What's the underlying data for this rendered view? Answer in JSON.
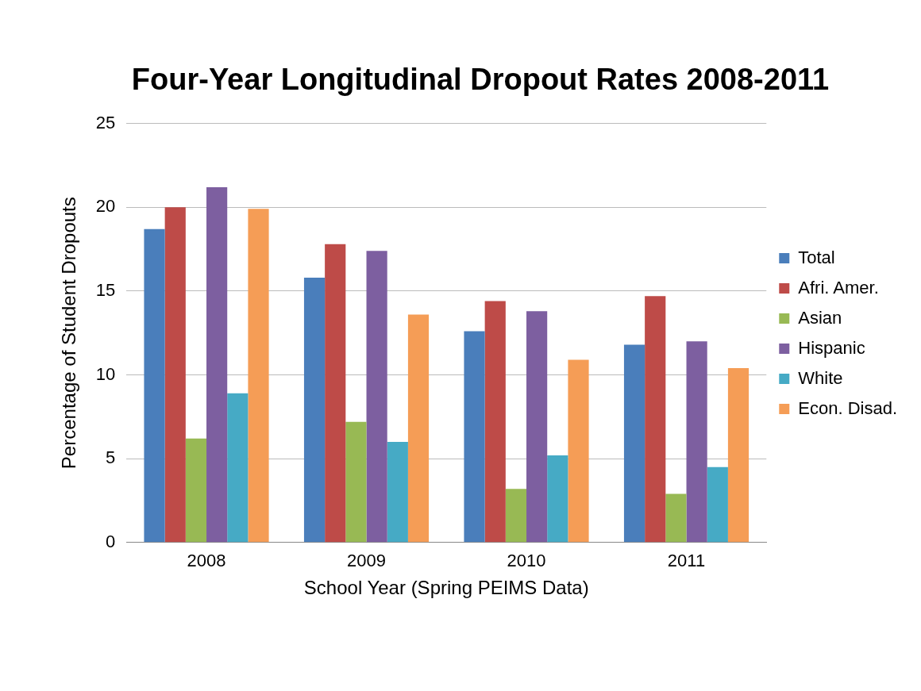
{
  "chart_data": {
    "type": "bar",
    "title": "Four-Year Longitudinal Dropout Rates 2008-2011",
    "xlabel": "School Year (Spring PEIMS Data)",
    "ylabel": "Percentage of Student Dropouts",
    "categories": [
      "2008",
      "2009",
      "2010",
      "2011"
    ],
    "series": [
      {
        "name": "Total",
        "color": "#4a7ebb",
        "values": [
          18.7,
          15.8,
          12.6,
          11.8
        ]
      },
      {
        "name": "Afri. Amer.",
        "color": "#be4b48",
        "values": [
          20.0,
          17.8,
          14.4,
          14.7
        ]
      },
      {
        "name": "Asian",
        "color": "#98b954",
        "values": [
          6.2,
          7.2,
          3.2,
          2.9
        ]
      },
      {
        "name": "Hispanic",
        "color": "#7d5fa0",
        "values": [
          21.2,
          17.4,
          13.8,
          12.0
        ]
      },
      {
        "name": "White",
        "color": "#46aac5",
        "values": [
          8.9,
          6.0,
          5.2,
          4.5
        ]
      },
      {
        "name": "Econ. Disad.",
        "color": "#f59d56",
        "values": [
          19.9,
          13.6,
          10.9,
          10.4
        ]
      }
    ],
    "ylim": [
      0,
      25
    ],
    "yticks": [
      0,
      5,
      10,
      15,
      20,
      25
    ],
    "grid": "y",
    "legend": "right"
  }
}
